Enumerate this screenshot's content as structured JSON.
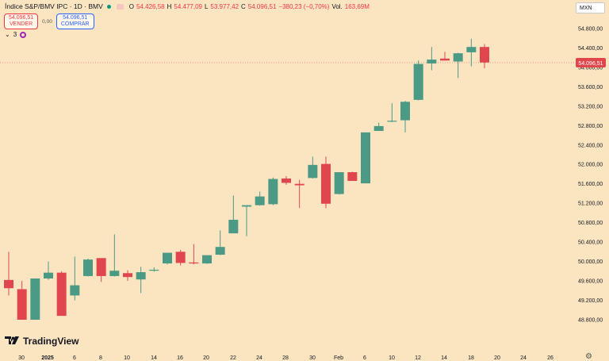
{
  "header": {
    "symbol": "Índice S&P/BMV IPC · 1D · BMV",
    "open_label": "O",
    "open": "54.426,58",
    "high_label": "H",
    "high": "54.477,09",
    "low_label": "L",
    "low": "53.977,42",
    "close_label": "C",
    "close": "54.096,51",
    "change": "−380,23 (−0,70%)",
    "vol_label": "Vol.",
    "vol": "163,69M"
  },
  "trade": {
    "sell_price": "54.096,51",
    "sell_label": "VENDER",
    "spread": "0,00",
    "buy_price": "54.096,51",
    "buy_label": "COMPRAR"
  },
  "indicators_count": "3",
  "currency": "MXN",
  "brand": "TradingView",
  "colors": {
    "up": "#4a9a86",
    "down": "#e0474c",
    "background": "#fbe5c0"
  },
  "chart_data": {
    "type": "candlestick",
    "current_price_label": "54.096,51",
    "y_ticks": [
      "54.800,00",
      "54.400,00",
      "54.000,00",
      "53.600,00",
      "53.200,00",
      "52.800,00",
      "52.400,00",
      "52.000,00",
      "51.600,00",
      "51.200,00",
      "50.800,00",
      "50.400,00",
      "50.000,00",
      "49.600,00",
      "49.200,00",
      "48.800,00"
    ],
    "x_ticks": [
      "30",
      "2025",
      "6",
      "8",
      "10",
      "14",
      "16",
      "20",
      "22",
      "24",
      "28",
      "30",
      "Feb",
      "6",
      "10",
      "12",
      "14",
      "18",
      "20",
      "24",
      "26"
    ],
    "ylim": [
      48600,
      55000
    ],
    "candles": [
      {
        "o": 49620,
        "h": 50200,
        "l": 49300,
        "c": 49450
      },
      {
        "o": 49430,
        "h": 49600,
        "l": 48800,
        "c": 48800
      },
      {
        "o": 48800,
        "h": 49650,
        "l": 48800,
        "c": 49650
      },
      {
        "o": 49650,
        "h": 50000,
        "l": 49620,
        "c": 49770
      },
      {
        "o": 49770,
        "h": 49800,
        "l": 48880,
        "c": 48880
      },
      {
        "o": 49300,
        "h": 50100,
        "l": 49200,
        "c": 49510
      },
      {
        "o": 49700,
        "h": 50060,
        "l": 49690,
        "c": 50040
      },
      {
        "o": 50070,
        "h": 50070,
        "l": 49580,
        "c": 49700
      },
      {
        "o": 49700,
        "h": 50560,
        "l": 49690,
        "c": 49810
      },
      {
        "o": 49760,
        "h": 49820,
        "l": 49600,
        "c": 49680
      },
      {
        "o": 49630,
        "h": 49890,
        "l": 49350,
        "c": 49780
      },
      {
        "o": 49820,
        "h": 49880,
        "l": 49790,
        "c": 49830
      },
      {
        "o": 49960,
        "h": 50180,
        "l": 49940,
        "c": 50180
      },
      {
        "o": 50200,
        "h": 50240,
        "l": 49920,
        "c": 49970
      },
      {
        "o": 49980,
        "h": 50360,
        "l": 49940,
        "c": 49960
      },
      {
        "o": 49960,
        "h": 50130,
        "l": 49950,
        "c": 50130
      },
      {
        "o": 50140,
        "h": 50640,
        "l": 50130,
        "c": 50300
      },
      {
        "o": 50580,
        "h": 51360,
        "l": 50580,
        "c": 50860
      },
      {
        "o": 51130,
        "h": 51140,
        "l": 50520,
        "c": 51160
      },
      {
        "o": 51160,
        "h": 51440,
        "l": 51150,
        "c": 51340
      },
      {
        "o": 51180,
        "h": 51730,
        "l": 51160,
        "c": 51700
      },
      {
        "o": 51710,
        "h": 51760,
        "l": 51580,
        "c": 51620
      },
      {
        "o": 51600,
        "h": 51680,
        "l": 51100,
        "c": 51570
      },
      {
        "o": 51720,
        "h": 52160,
        "l": 51710,
        "c": 51990
      },
      {
        "o": 52010,
        "h": 52160,
        "l": 51100,
        "c": 51190
      },
      {
        "o": 51390,
        "h": 51830,
        "l": 51380,
        "c": 51840
      },
      {
        "o": 51840,
        "h": 51850,
        "l": 51680,
        "c": 51660
      },
      {
        "o": 51610,
        "h": 52660,
        "l": 51610,
        "c": 52660
      },
      {
        "o": 52690,
        "h": 52860,
        "l": 52690,
        "c": 52790
      },
      {
        "o": 52890,
        "h": 53260,
        "l": 52870,
        "c": 52900
      },
      {
        "o": 52910,
        "h": 53310,
        "l": 52660,
        "c": 53290
      },
      {
        "o": 53330,
        "h": 54140,
        "l": 53320,
        "c": 54070
      },
      {
        "o": 54080,
        "h": 54420,
        "l": 53940,
        "c": 54160
      },
      {
        "o": 54180,
        "h": 54320,
        "l": 54150,
        "c": 54140
      },
      {
        "o": 54120,
        "h": 54300,
        "l": 53780,
        "c": 54290
      },
      {
        "o": 54310,
        "h": 54590,
        "l": 54020,
        "c": 54420
      },
      {
        "o": 54420,
        "h": 54480,
        "l": 53980,
        "c": 54100
      }
    ]
  }
}
